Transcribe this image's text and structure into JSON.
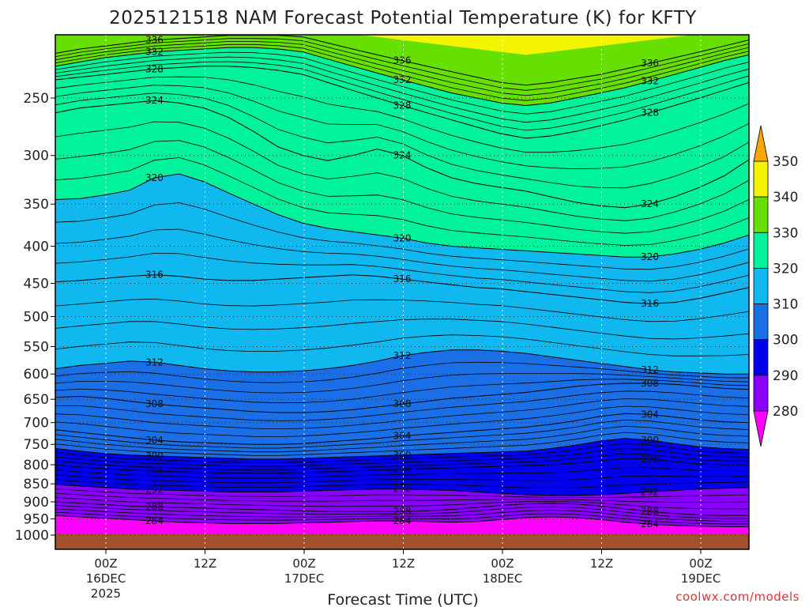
{
  "title": "2025121518 NAM Forecast Potential Temperature (K) for KFTY",
  "credit": "coolwx.com/models",
  "chart_data": {
    "type": "heatmap",
    "title": "2025121518 NAM Forecast Potential Temperature (K) for KFTY",
    "xlabel": "Forecast Time (UTC)",
    "ylabel": "",
    "y_scale": "log-pressure",
    "y_unit": "hPa",
    "ylim": [
      1000,
      200
    ],
    "y_ticks": [
      "250",
      "300",
      "350",
      "400",
      "450",
      "500",
      "550",
      "600",
      "650",
      "700",
      "750",
      "800",
      "850",
      "900",
      "950",
      "1000"
    ],
    "x_ticks": [
      {
        "hour": "00Z",
        "day": "16DEC",
        "year": "2025"
      },
      {
        "hour": "12Z",
        "day": "",
        "year": ""
      },
      {
        "hour": "00Z",
        "day": "17DEC",
        "year": ""
      },
      {
        "hour": "12Z",
        "day": "",
        "year": ""
      },
      {
        "hour": "00Z",
        "day": "18DEC",
        "year": ""
      },
      {
        "hour": "12Z",
        "day": "",
        "year": ""
      },
      {
        "hour": "00Z",
        "day": "19DEC",
        "year": ""
      }
    ],
    "x_hours": [
      6,
      18,
      30,
      42,
      54,
      66,
      78
    ],
    "xlim_hours": [
      0,
      84
    ],
    "grid": true,
    "colorbar": {
      "labels": [
        "350",
        "340",
        "330",
        "320",
        "310",
        "300",
        "290",
        "280"
      ],
      "bands": [
        {
          "from": 280,
          "to": 290,
          "color": "#8a00ff"
        },
        {
          "from": 290,
          "to": 300,
          "color": "#0000ee"
        },
        {
          "from": 300,
          "to": 310,
          "color": "#1a6fe6"
        },
        {
          "from": 310,
          "to": 320,
          "color": "#10b8f0"
        },
        {
          "from": 320,
          "to": 330,
          "color": "#00f29a"
        },
        {
          "from": 330,
          "to": 340,
          "color": "#66e000"
        },
        {
          "from": 340,
          "to": 350,
          "color": "#f4f400"
        }
      ],
      "below_color": "#ff00ff",
      "above_color": "#f9a600"
    },
    "ground_color": "#a0522d",
    "contours": [
      {
        "value": 336,
        "p": [
          217,
          214,
          212,
          210,
          208,
          207,
          206,
          205,
          205,
          205,
          206,
          210,
          214,
          218,
          222,
          226,
          230,
          234,
          238,
          240,
          238,
          235,
          232,
          228,
          224,
          220,
          216,
          212,
          208
        ]
      },
      {
        "value": 332,
        "p": [
          226,
          223,
          220,
          218,
          216,
          215,
          214,
          213,
          213,
          214,
          216,
          221,
          226,
          231,
          236,
          241,
          246,
          250,
          254,
          256,
          254,
          250,
          246,
          242,
          237,
          232,
          227,
          222,
          218
        ]
      },
      {
        "value": 328,
        "p": [
          236,
          234,
          232,
          230,
          228,
          227,
          226,
          226,
          227,
          229,
          232,
          238,
          244,
          250,
          256,
          262,
          268,
          274,
          280,
          284,
          282,
          278,
          273,
          268,
          262,
          256,
          250,
          244,
          238
        ]
      },
      {
        "value": 324,
        "p": [
          262,
          258,
          256,
          254,
          252,
          254,
          258,
          266,
          278,
          292,
          300,
          305,
          300,
          294,
          300,
          312,
          322,
          328,
          332,
          336,
          342,
          348,
          352,
          354,
          350,
          342,
          332,
          320,
          304
        ]
      },
      {
        "value": 320,
        "p": [
          345,
          344,
          340,
          335,
          322,
          318,
          326,
          338,
          350,
          362,
          372,
          378,
          382,
          386,
          390,
          396,
          400,
          402,
          404,
          406,
          408,
          410,
          412,
          414,
          414,
          410,
          404,
          396,
          386
        ]
      },
      {
        "value": 316,
        "p": [
          448,
          446,
          443,
          440,
          438,
          440,
          444,
          446,
          446,
          444,
          442,
          440,
          438,
          440,
          444,
          448,
          452,
          456,
          458,
          462,
          466,
          470,
          474,
          478,
          480,
          478,
          472,
          464,
          456
        ]
      },
      {
        "value": 312,
        "p": [
          590,
          584,
          580,
          576,
          578,
          584,
          590,
          594,
          596,
          596,
          594,
          590,
          584,
          576,
          566,
          560,
          556,
          556,
          558,
          562,
          568,
          574,
          580,
          586,
          592,
          596,
          598,
          600,
          600
        ]
      },
      {
        "value": 308,
        "p": [
          646,
          644,
          648,
          654,
          660,
          664,
          668,
          672,
          676,
          678,
          678,
          676,
          672,
          666,
          660,
          654,
          648,
          644,
          640,
          636,
          630,
          624,
          620,
          618,
          618,
          620,
          624,
          628,
          630
        ]
      },
      {
        "value": 304,
        "p": [
          716,
          722,
          728,
          734,
          740,
          744,
          746,
          748,
          750,
          750,
          748,
          744,
          740,
          736,
          730,
          726,
          722,
          718,
          714,
          710,
          704,
          696,
          686,
          680,
          682,
          688,
          694,
          698,
          700
        ]
      },
      {
        "value": 300,
        "p": [
          760,
          766,
          772,
          776,
          778,
          780,
          782,
          784,
          786,
          786,
          784,
          782,
          780,
          778,
          776,
          774,
          772,
          770,
          768,
          766,
          760,
          752,
          742,
          736,
          740,
          748,
          756,
          760,
          762
        ]
      },
      {
        "value": 296,
        "p": [
          800,
          806,
          810,
          814,
          816,
          818,
          820,
          822,
          822,
          822,
          820,
          818,
          816,
          814,
          812,
          810,
          808,
          806,
          804,
          802,
          800,
          796,
          790,
          784,
          786,
          792,
          798,
          800,
          800
        ]
      },
      {
        "value": 292,
        "p": [
          852,
          856,
          860,
          864,
          866,
          868,
          870,
          872,
          872,
          872,
          870,
          868,
          866,
          864,
          864,
          866,
          868,
          872,
          876,
          880,
          882,
          882,
          880,
          876,
          872,
          868,
          864,
          862,
          860
        ]
      },
      {
        "value": 288,
        "p": [
          900,
          904,
          908,
          912,
          914,
          916,
          918,
          920,
          922,
          924,
          926,
          928,
          928,
          928,
          928,
          926,
          922,
          916,
          910,
          906,
          904,
          906,
          912,
          920,
          928,
          934,
          938,
          940,
          940
        ]
      },
      {
        "value": 284,
        "p": [
          940,
          944,
          948,
          952,
          956,
          960,
          962,
          964,
          964,
          964,
          962,
          960,
          958,
          956,
          956,
          958,
          960,
          958,
          952,
          946,
          944,
          946,
          952,
          960,
          966,
          970,
          972,
          974,
          974
        ]
      }
    ]
  }
}
